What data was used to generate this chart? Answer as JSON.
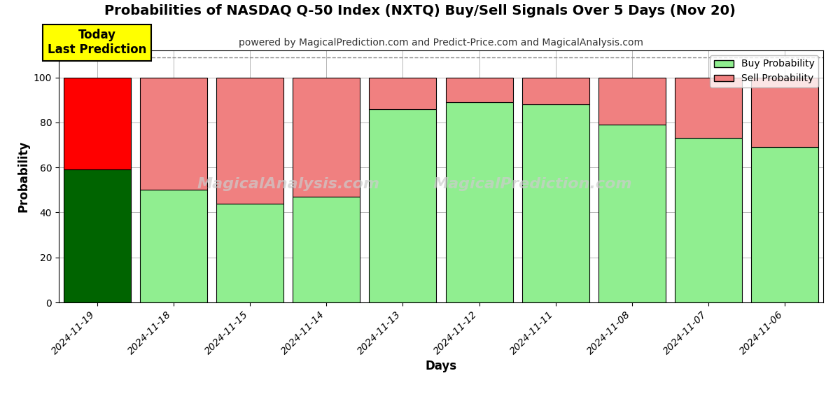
{
  "title": "Probabilities of NASDAQ Q-50 Index (NXTQ) Buy/Sell Signals Over 5 Days (Nov 20)",
  "subtitle": "powered by MagicalPrediction.com and Predict-Price.com and MagicalAnalysis.com",
  "xlabel": "Days",
  "ylabel": "Probability",
  "dates": [
    "2024-11-19",
    "2024-11-18",
    "2024-11-15",
    "2024-11-14",
    "2024-11-13",
    "2024-11-12",
    "2024-11-11",
    "2024-11-08",
    "2024-11-07",
    "2024-11-06"
  ],
  "buy_values": [
    59,
    50,
    44,
    47,
    86,
    89,
    88,
    79,
    73,
    69
  ],
  "sell_values": [
    41,
    50,
    56,
    53,
    14,
    11,
    12,
    21,
    27,
    31
  ],
  "buy_color_today": "#006400",
  "sell_color_today": "#FF0000",
  "buy_color_others": "#90EE90",
  "sell_color_others": "#F08080",
  "today_label": "Today\nLast Prediction",
  "legend_buy": "Buy Probability",
  "legend_sell": "Sell Probability",
  "ylim": [
    0,
    112
  ],
  "yticks": [
    0,
    20,
    40,
    60,
    80,
    100
  ],
  "dashed_line_y": 109,
  "watermark_left": "MagicalAnalysis.com",
  "watermark_right": "MagicalPrediction.com",
  "background_color": "#ffffff",
  "grid_color": "#aaaaaa",
  "bar_edge_color": "#000000",
  "bar_width": 0.88
}
